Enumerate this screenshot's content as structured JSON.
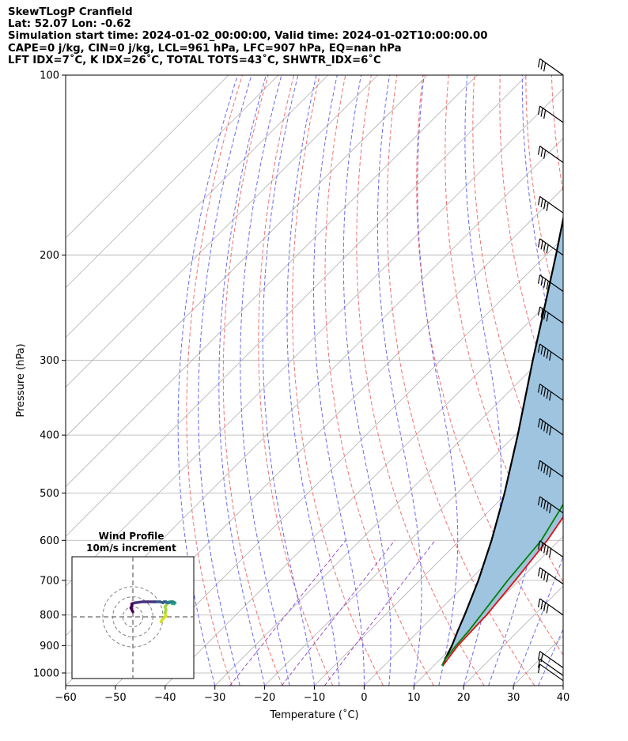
{
  "header": {
    "line1": "SkewTLogP Cranfield",
    "line2": "Lat: 52.07   Lon: -0.62",
    "line3": "Simulation start time: 2024-01-02_00:00:00, Valid time: 2024-01-02T10:00:00.00",
    "line4": "CAPE=0 j/kg, CIN=0 j/kg, LCL=961 hPa, LFC=907 hPa, EQ=nan hPa",
    "line5": "LFT IDX=7˚C, K IDX=26˚C, TOTAL TOTS=43˚C, SHWTR_IDX=6˚C"
  },
  "chart_data": [
    {
      "type": "line",
      "xlabel": "Temperature (˚C)",
      "ylabel": "Pressure (hPa)",
      "xlim": [
        -60,
        40
      ],
      "ylim": [
        1050,
        100
      ],
      "y_scale": "log",
      "x_ticks": [
        -60,
        -50,
        -40,
        -30,
        -20,
        -10,
        0,
        10,
        20,
        30,
        40
      ],
      "y_ticks": [
        1000,
        900,
        800,
        700,
        600,
        500,
        400,
        300,
        200,
        100
      ],
      "grid": true,
      "skew_degrees": 45,
      "colors": {
        "temperature": "#e01010",
        "dewpoint": "#008000",
        "parcel": "#000000",
        "cape_fill": "#9ec4e0",
        "dry_adiabat": "#f07070",
        "moist_adiabat": "#6a6af0",
        "mixing_ratio": "#9b50c8",
        "isotherm": "#b0b0b0"
      },
      "series": [
        {
          "name": "temperature",
          "pressure": [
            972,
            950,
            900,
            850,
            800,
            700,
            600,
            500,
            450,
            400,
            350,
            300,
            250,
            240,
            230,
            220,
            200,
            180,
            160,
            150,
            140,
            130,
            120,
            110,
            100
          ],
          "temperature": [
            11.8,
            11.5,
            10.8,
            10.6,
            10.4,
            9.2,
            7.6,
            4.6,
            1.7,
            -2.4,
            -7.1,
            -12.3,
            -19.2,
            -20.2,
            -21.7,
            -24.7,
            -27.0,
            -27.6,
            -30.7,
            -31.7,
            -33.0,
            -35.2,
            -38.3,
            -40.9,
            -42.7
          ]
        },
        {
          "name": "dewpoint",
          "pressure": [
            972,
            950,
            900,
            850,
            800,
            700,
            600,
            500,
            450,
            400,
            350,
            300,
            280,
            250,
            235,
            220,
            210,
            200,
            180,
            160,
            150,
            140,
            130,
            120,
            110,
            100
          ],
          "temperature": [
            11.6,
            11.0,
            10.4,
            10.0,
            9.3,
            7.7,
            6.4,
            2.7,
            0.1,
            -3.5,
            -9.6,
            -15.2,
            -19.0,
            -23.4,
            -25.9,
            -33.8,
            -38.8,
            -30.2,
            -32.3,
            -36.2,
            -39.1,
            -43.1,
            -45.5,
            -49.8,
            -54.0,
            -58.0
          ]
        },
        {
          "name": "parcel",
          "pressure": [
            972,
            950,
            900,
            850,
            800,
            700,
            600,
            500,
            400,
            300,
            250,
            200,
            150,
            100
          ],
          "temperature": [
            11.8,
            11.0,
            9.6,
            7.8,
            6.0,
            1.8,
            -3.6,
            -10.5,
            -19.5,
            -31.5,
            -38.9,
            -48.0,
            -60.0,
            -75.0
          ]
        }
      ],
      "wind_barbs": {
        "pressure": [
          1030,
          1010,
          980,
          800,
          710,
          640,
          540,
          470,
          400,
          350,
          300,
          260,
          230,
          200,
          170,
          140,
          120,
          100
        ],
        "speed_kt": [
          10,
          10,
          15,
          35,
          40,
          45,
          50,
          50,
          45,
          45,
          45,
          40,
          40,
          35,
          35,
          30,
          30,
          30
        ]
      }
    },
    {
      "type": "scatter",
      "title": "Wind Profile",
      "subtitle": "10m/s increment",
      "grid": false,
      "rings_ms": [
        10,
        20,
        30
      ],
      "colormap": "viridis",
      "u": [
        28,
        29,
        31,
        33,
        32,
        33,
        32,
        34,
        36,
        38,
        39,
        39,
        40,
        41,
        41,
        42,
        40,
        38,
        36,
        34,
        33,
        31,
        30,
        27,
        22,
        15,
        10,
        2,
        -1,
        -1,
        -2,
        -1,
        0
      ],
      "v": [
        -5,
        -3,
        -1,
        1,
        4,
        7,
        10,
        13,
        15,
        15,
        14,
        13,
        14,
        13,
        14,
        14,
        15,
        15,
        14,
        14,
        15,
        15,
        14,
        15,
        15,
        15,
        15,
        14,
        13,
        11,
        9,
        7,
        5
      ]
    }
  ]
}
